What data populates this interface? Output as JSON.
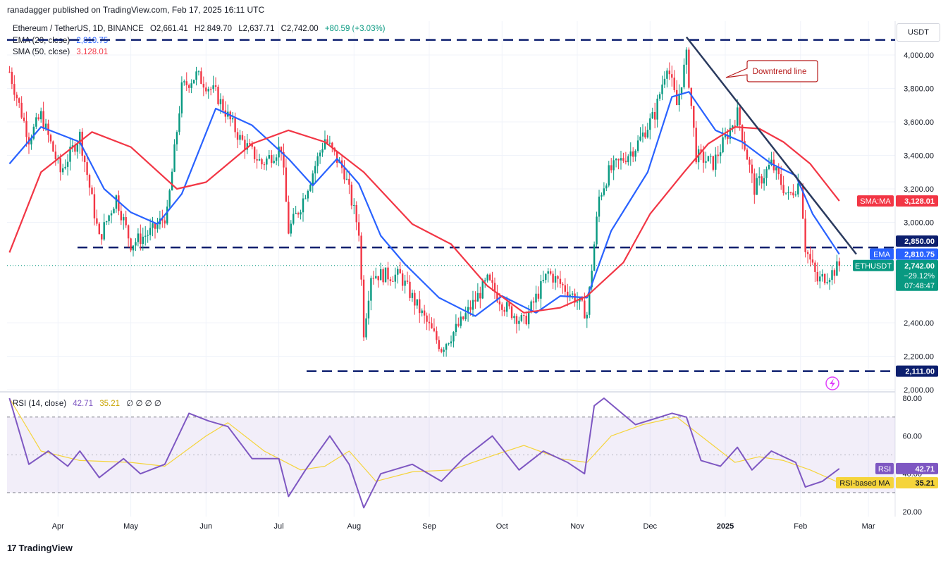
{
  "publisher_line": "ranadagger published on TradingView.com, Feb 17, 2025 16:11 UTC",
  "symbol_line": {
    "name": "Ethereum / TetherUS, 1D, BINANCE",
    "open": "O2,661.41",
    "high": "H2,849.70",
    "low": "L2,637.71",
    "close": "C2,742.00",
    "change": "+80.59 (+3.03%)"
  },
  "ema_legend": {
    "label": "EMA (20, close)",
    "value": "2,810.75"
  },
  "sma_legend": {
    "label": "SMA (50, close)",
    "value": "3,128.01"
  },
  "rsi_legend": {
    "label": "RSI (14, close)",
    "value": "42.71",
    "ma_value": "35.21",
    "extras": "∅ ∅ ∅ ∅"
  },
  "currency_button": "USDT",
  "brand": "TradingView",
  "colors": {
    "up": "#089981",
    "down": "#f23645",
    "ema": "#2962ff",
    "sma": "#f23645",
    "trendline": "#2a3a5e",
    "levels": "#0c1f6e",
    "rsi": "#7e57c2",
    "rsi_ma": "#f5d43b"
  },
  "chart_data": [
    {
      "type": "candlestick",
      "title": "Ethereum / TetherUS, 1D, BINANCE",
      "x_tick_labels": [
        "Apr",
        "May",
        "Jun",
        "Jul",
        "Aug",
        "Sep",
        "Oct",
        "Nov",
        "Dec",
        "2025",
        "Feb",
        "Mar"
      ],
      "y_tick_labels": [
        "4,000.00",
        "3,800.00",
        "3,600.00",
        "3,400.00",
        "3,200.00",
        "3,000.00",
        "2,400.00",
        "2,200.00",
        "2,000.00"
      ],
      "ylim": [
        2000,
        4100
      ],
      "horizontal_levels": [
        {
          "value": 4090,
          "label": ""
        },
        {
          "value": 2850,
          "label": "2,850.00"
        },
        {
          "value": 2111,
          "label": "2,111.00"
        }
      ],
      "trendline": {
        "from": {
          "date": "2024-12-16",
          "price": 4107
        },
        "to": {
          "date": "2025-02-24",
          "price": 2810
        }
      },
      "annotations": [
        {
          "text": "Downtrend line"
        }
      ],
      "price_labels": {
        "sma": {
          "tag": "SMA:MA",
          "value": "3,128.01"
        },
        "ema": {
          "tag": "EMA",
          "value": "2,810.75"
        },
        "last": {
          "tag": "ETHUSDT",
          "value": "2,742.00",
          "change": "−29.12%",
          "countdown": "07:48:47"
        }
      },
      "series": [
        {
          "name": "ETHUSDT",
          "points": [
            [
              "2024-03-12",
              3900
            ],
            [
              "2024-03-20",
              3500
            ],
            [
              "2024-03-25",
              3640
            ],
            [
              "2024-04-02",
              3300
            ],
            [
              "2024-04-10",
              3520
            ],
            [
              "2024-04-18",
              2900
            ],
            [
              "2024-04-25",
              3150
            ],
            [
              "2024-05-01",
              2870
            ],
            [
              "2024-05-10",
              2950
            ],
            [
              "2024-05-16",
              3050
            ],
            [
              "2024-05-22",
              3800
            ],
            [
              "2024-05-28",
              3880
            ],
            [
              "2024-06-05",
              3770
            ],
            [
              "2024-06-15",
              3500
            ],
            [
              "2024-06-24",
              3350
            ],
            [
              "2024-07-02",
              3450
            ],
            [
              "2024-07-05",
              2950
            ],
            [
              "2024-07-10",
              3100
            ],
            [
              "2024-07-20",
              3500
            ],
            [
              "2024-07-28",
              3300
            ],
            [
              "2024-08-03",
              2950
            ],
            [
              "2024-08-05",
              2350
            ],
            [
              "2024-08-08",
              2690
            ],
            [
              "2024-08-20",
              2680
            ],
            [
              "2024-08-27",
              2500
            ],
            [
              "2024-09-06",
              2250
            ],
            [
              "2024-09-14",
              2400
            ],
            [
              "2024-09-25",
              2650
            ],
            [
              "2024-10-02",
              2500
            ],
            [
              "2024-10-10",
              2400
            ],
            [
              "2024-10-20",
              2700
            ],
            [
              "2024-10-31",
              2550
            ],
            [
              "2024-11-05",
              2450
            ],
            [
              "2024-11-10",
              3150
            ],
            [
              "2024-11-14",
              3300
            ],
            [
              "2024-11-25",
              3450
            ],
            [
              "2024-12-03",
              3650
            ],
            [
              "2024-12-08",
              3950
            ],
            [
              "2024-12-12",
              3700
            ],
            [
              "2024-12-16",
              3990
            ],
            [
              "2024-12-20",
              3400
            ],
            [
              "2024-12-27",
              3350
            ],
            [
              "2025-01-06",
              3650
            ],
            [
              "2025-01-13",
              3200
            ],
            [
              "2025-01-20",
              3350
            ],
            [
              "2025-01-27",
              3150
            ],
            [
              "2025-02-01",
              3250
            ],
            [
              "2025-02-03",
              2850
            ],
            [
              "2025-02-08",
              2650
            ],
            [
              "2025-02-14",
              2700
            ],
            [
              "2025-02-17",
              2742
            ]
          ]
        },
        {
          "name": "EMA (20, close)",
          "points": [
            [
              "2024-03-12",
              3350
            ],
            [
              "2024-03-25",
              3570
            ],
            [
              "2024-04-10",
              3480
            ],
            [
              "2024-04-20",
              3200
            ],
            [
              "2024-05-01",
              3060
            ],
            [
              "2024-05-12",
              2990
            ],
            [
              "2024-05-22",
              3170
            ],
            [
              "2024-06-05",
              3680
            ],
            [
              "2024-06-20",
              3580
            ],
            [
              "2024-07-05",
              3380
            ],
            [
              "2024-07-15",
              3220
            ],
            [
              "2024-07-25",
              3380
            ],
            [
              "2024-08-03",
              3230
            ],
            [
              "2024-08-12",
              2920
            ],
            [
              "2024-08-22",
              2750
            ],
            [
              "2024-09-05",
              2550
            ],
            [
              "2024-09-20",
              2440
            ],
            [
              "2024-10-01",
              2560
            ],
            [
              "2024-10-15",
              2460
            ],
            [
              "2024-10-25",
              2560
            ],
            [
              "2024-11-05",
              2550
            ],
            [
              "2024-11-15",
              2950
            ],
            [
              "2024-11-30",
              3300
            ],
            [
              "2024-12-10",
              3750
            ],
            [
              "2024-12-17",
              3780
            ],
            [
              "2024-12-28",
              3550
            ],
            [
              "2025-01-08",
              3480
            ],
            [
              "2025-01-20",
              3350
            ],
            [
              "2025-01-30",
              3280
            ],
            [
              "2025-02-06",
              3050
            ],
            [
              "2025-02-17",
              2810
            ]
          ]
        },
        {
          "name": "SMA (50, close)",
          "points": [
            [
              "2024-03-12",
              2820
            ],
            [
              "2024-03-25",
              3300
            ],
            [
              "2024-04-15",
              3540
            ],
            [
              "2024-05-01",
              3450
            ],
            [
              "2024-05-20",
              3200
            ],
            [
              "2024-06-01",
              3240
            ],
            [
              "2024-06-20",
              3470
            ],
            [
              "2024-07-05",
              3550
            ],
            [
              "2024-07-20",
              3480
            ],
            [
              "2024-08-05",
              3300
            ],
            [
              "2024-08-25",
              2990
            ],
            [
              "2024-09-10",
              2870
            ],
            [
              "2024-09-25",
              2620
            ],
            [
              "2024-10-10",
              2460
            ],
            [
              "2024-10-25",
              2490
            ],
            [
              "2024-11-05",
              2560
            ],
            [
              "2024-11-20",
              2760
            ],
            [
              "2024-12-01",
              3050
            ],
            [
              "2024-12-15",
              3300
            ],
            [
              "2024-12-25",
              3470
            ],
            [
              "2025-01-05",
              3570
            ],
            [
              "2025-01-15",
              3560
            ],
            [
              "2025-01-25",
              3480
            ],
            [
              "2025-02-05",
              3350
            ],
            [
              "2025-02-17",
              3128
            ]
          ]
        }
      ]
    },
    {
      "type": "line",
      "title": "RSI (14, close)",
      "y_tick_labels": [
        "80.00",
        "60.00",
        "40.00",
        "20.00"
      ],
      "ylim": [
        14,
        82
      ],
      "bands": {
        "upper": 70,
        "lower": 30
      },
      "price_labels": {
        "rsi": {
          "tag": "RSI",
          "value": "42.71"
        },
        "rsi_ma": {
          "tag": "RSI-based MA",
          "value": "35.21"
        }
      },
      "series": [
        {
          "name": "RSI",
          "points": [
            [
              "2024-03-12",
              80
            ],
            [
              "2024-03-20",
              45
            ],
            [
              "2024-03-28",
              52
            ],
            [
              "2024-04-05",
              44
            ],
            [
              "2024-04-10",
              52
            ],
            [
              "2024-04-18",
              38
            ],
            [
              "2024-04-28",
              48
            ],
            [
              "2024-05-05",
              40
            ],
            [
              "2024-05-15",
              45
            ],
            [
              "2024-05-25",
              72
            ],
            [
              "2024-06-02",
              68
            ],
            [
              "2024-06-10",
              65
            ],
            [
              "2024-06-20",
              48
            ],
            [
              "2024-07-01",
              48
            ],
            [
              "2024-07-05",
              28
            ],
            [
              "2024-07-12",
              42
            ],
            [
              "2024-07-22",
              60
            ],
            [
              "2024-07-30",
              45
            ],
            [
              "2024-08-05",
              22
            ],
            [
              "2024-08-12",
              40
            ],
            [
              "2024-08-25",
              45
            ],
            [
              "2024-09-06",
              36
            ],
            [
              "2024-09-15",
              48
            ],
            [
              "2024-09-27",
              60
            ],
            [
              "2024-10-08",
              42
            ],
            [
              "2024-10-18",
              52
            ],
            [
              "2024-10-28",
              46
            ],
            [
              "2024-11-04",
              40
            ],
            [
              "2024-11-08",
              76
            ],
            [
              "2024-11-12",
              80
            ],
            [
              "2024-11-25",
              66
            ],
            [
              "2024-12-05",
              70
            ],
            [
              "2024-12-10",
              72
            ],
            [
              "2024-12-16",
              70
            ],
            [
              "2024-12-22",
              47
            ],
            [
              "2024-12-30",
              44
            ],
            [
              "2025-01-06",
              54
            ],
            [
              "2025-01-12",
              42
            ],
            [
              "2025-01-20",
              52
            ],
            [
              "2025-01-30",
              46
            ],
            [
              "2025-02-03",
              33
            ],
            [
              "2025-02-10",
              36
            ],
            [
              "2025-02-17",
              42.71
            ]
          ]
        },
        {
          "name": "RSI-based MA",
          "points": [
            [
              "2024-03-12",
              80
            ],
            [
              "2024-03-25",
              52
            ],
            [
              "2024-04-10",
              47
            ],
            [
              "2024-05-01",
              46
            ],
            [
              "2024-05-15",
              44
            ],
            [
              "2024-06-01",
              60
            ],
            [
              "2024-06-10",
              67
            ],
            [
              "2024-06-25",
              52
            ],
            [
              "2024-07-10",
              42
            ],
            [
              "2024-07-20",
              44
            ],
            [
              "2024-07-30",
              52
            ],
            [
              "2024-08-10",
              36
            ],
            [
              "2024-08-25",
              41
            ],
            [
              "2024-09-10",
              42
            ],
            [
              "2024-09-28",
              50
            ],
            [
              "2024-10-10",
              55
            ],
            [
              "2024-10-25",
              48
            ],
            [
              "2024-11-05",
              46
            ],
            [
              "2024-11-15",
              60
            ],
            [
              "2024-11-28",
              66
            ],
            [
              "2024-12-12",
              70
            ],
            [
              "2024-12-22",
              60
            ],
            [
              "2025-01-05",
              46
            ],
            [
              "2025-01-15",
              49
            ],
            [
              "2025-01-25",
              47
            ],
            [
              "2025-02-05",
              42
            ],
            [
              "2025-02-17",
              35.21
            ]
          ]
        }
      ]
    }
  ]
}
